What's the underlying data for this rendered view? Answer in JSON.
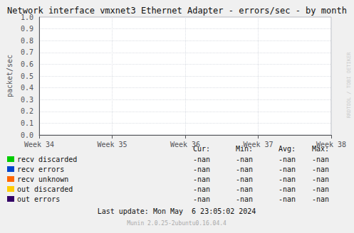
{
  "chart_data": {
    "type": "line",
    "title": "Network interface vmxnet3 Ethernet Adapter - errors/sec - by month",
    "ylabel": "packet/sec",
    "categories": [
      "Week 34",
      "Week 35",
      "Week 36",
      "Week 37",
      "Week 38"
    ],
    "series": [
      {
        "name": "recv discarded",
        "color": "#00cc00",
        "values": [
          null,
          null,
          null,
          null,
          null
        ],
        "stats": [
          "-nan",
          "-nan",
          "-nan",
          "-nan"
        ]
      },
      {
        "name": "recv errors",
        "color": "#0044cc",
        "values": [
          null,
          null,
          null,
          null,
          null
        ],
        "stats": [
          "-nan",
          "-nan",
          "-nan",
          "-nan"
        ]
      },
      {
        "name": "recv unknown",
        "color": "#ff6600",
        "values": [
          null,
          null,
          null,
          null,
          null
        ],
        "stats": [
          "-nan",
          "-nan",
          "-nan",
          "-nan"
        ]
      },
      {
        "name": "out discarded",
        "color": "#ffcc00",
        "values": [
          null,
          null,
          null,
          null,
          null
        ],
        "stats": [
          "-nan",
          "-nan",
          "-nan",
          "-nan"
        ]
      },
      {
        "name": "out errors",
        "color": "#330066",
        "values": [
          null,
          null,
          null,
          null,
          null
        ],
        "stats": [
          "-nan",
          "-nan",
          "-nan",
          "-nan"
        ]
      }
    ],
    "stats_headers": [
      "Cur:",
      "Min:",
      "Avg:",
      "Max:"
    ],
    "ylim": [
      0.0,
      1.0
    ],
    "yticks": [
      {
        "value": 0.0,
        "label": "0.0"
      },
      0.1,
      0.2,
      0.3,
      0.4,
      0.5,
      0.6,
      0.7,
      0.8,
      0.9,
      {
        "value": 1.0,
        "label": "1.0"
      }
    ],
    "grid": true,
    "annotations": [
      "Last update: Mon May  6 23:05:02 2024",
      "Munin 2.0.25-2ubuntu0.16.04.4",
      "RRDTOOL / TOBI OETIKER"
    ]
  }
}
